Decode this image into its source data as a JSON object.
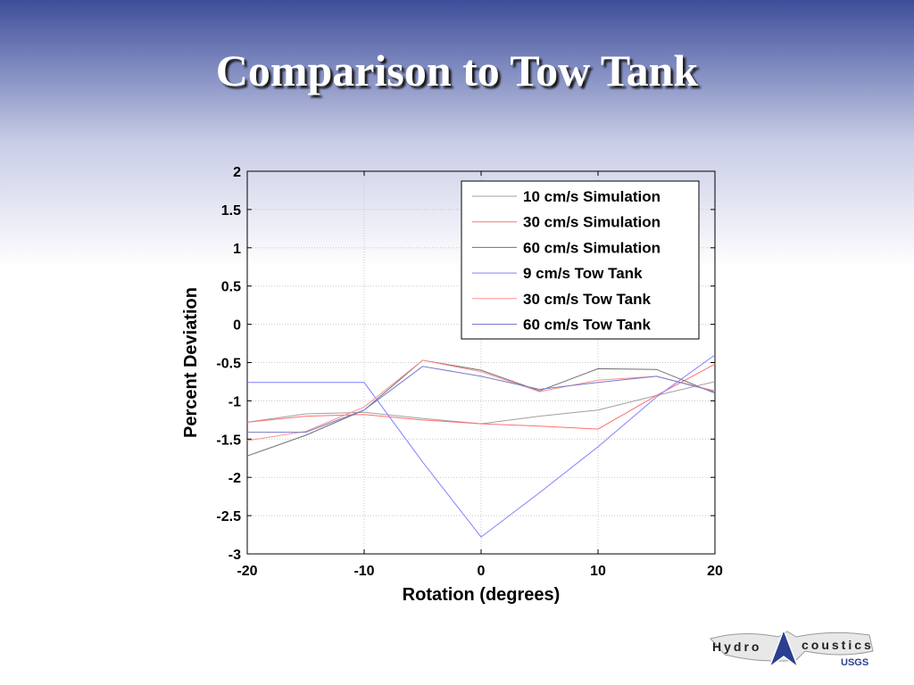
{
  "slide": {
    "title": "Comparison to Tow Tank"
  },
  "chart_data": {
    "type": "line",
    "xlabel": "Rotation (degrees)",
    "ylabel": "Percent Deviation",
    "xlim": [
      -20,
      20
    ],
    "ylim": [
      -3,
      2
    ],
    "xticks": [
      -20,
      -10,
      0,
      10,
      20
    ],
    "yticks": [
      -3,
      -2.5,
      -2,
      -1.5,
      -1,
      -0.5,
      0,
      0.5,
      1,
      1.5,
      2
    ],
    "grid": true,
    "legend_position": "top-right",
    "series": [
      {
        "name": "10 cm/s Simulation",
        "color": "#a0a0a0",
        "x": [
          -20,
          -15,
          -10,
          -5,
          0,
          5,
          10,
          15,
          20
        ],
        "y": [
          -1.28,
          -1.17,
          -1.15,
          -1.23,
          -1.3,
          -1.2,
          -1.12,
          -0.93,
          -0.75
        ]
      },
      {
        "name": "30 cm/s Simulation",
        "color": "#ff7070",
        "x": [
          -20,
          -15,
          -10,
          -5,
          0,
          5,
          10,
          15,
          20
        ],
        "y": [
          -1.28,
          -1.2,
          -1.18,
          -1.25,
          -1.3,
          -1.33,
          -1.37,
          -0.93,
          -0.52
        ]
      },
      {
        "name": "60 cm/s Simulation",
        "color": "#707070",
        "x": [
          -20,
          -15,
          -10,
          -5,
          0,
          5,
          10,
          15,
          20
        ],
        "y": [
          -1.72,
          -1.45,
          -1.12,
          -0.47,
          -0.6,
          -0.87,
          -0.58,
          -0.59,
          -0.9
        ]
      },
      {
        "name": "9 cm/s Tow Tank",
        "color": "#7f7fff",
        "x": [
          -20,
          -15,
          -10,
          -5,
          0,
          5,
          10,
          15,
          20
        ],
        "y": [
          -0.76,
          -0.76,
          -0.76,
          -1.8,
          -2.78,
          -2.2,
          -1.6,
          -0.95,
          -0.4
        ]
      },
      {
        "name": "30 cm/s Tow Tank",
        "color": "#ff9090",
        "x": [
          -20,
          -15,
          -10,
          -5,
          0,
          5,
          10,
          15,
          20
        ],
        "y": [
          -1.52,
          -1.4,
          -1.08,
          -0.47,
          -0.62,
          -0.88,
          -0.73,
          -0.68,
          -0.87
        ]
      },
      {
        "name": "60 cm/s Tow Tank",
        "color": "#7a7acc",
        "x": [
          -20,
          -15,
          -10,
          -5,
          0,
          5,
          10,
          15,
          20
        ],
        "y": [
          -1.41,
          -1.41,
          -1.12,
          -0.55,
          -0.68,
          -0.85,
          -0.76,
          -0.68,
          -0.88
        ]
      }
    ]
  },
  "logo": {
    "text_left": "Hydro",
    "text_right": "coustics",
    "agency": "USGS"
  }
}
